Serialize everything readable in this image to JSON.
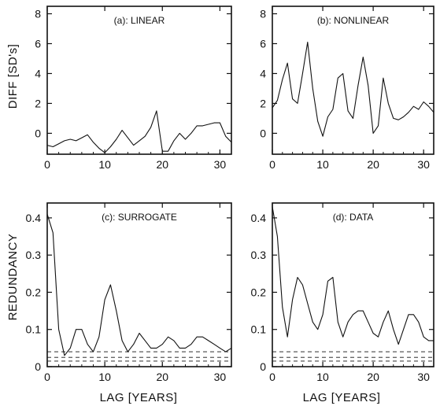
{
  "figure": {
    "y_label_top": "DIFF [SD's]",
    "y_label_bottom": "REDUNDANCY",
    "x_label": "LAG [YEARS]"
  },
  "chart_data": [
    {
      "id": "a",
      "type": "line",
      "title": "(a): LINEAR",
      "xlabel": "",
      "ylabel": "DIFF [SD's]",
      "xlim": [
        0,
        32
      ],
      "ylim": [
        -1.4,
        8.5
      ],
      "xticks": [
        "0",
        "10",
        "20",
        "30"
      ],
      "yticks": [
        "0",
        "2",
        "4",
        "6",
        "8"
      ],
      "x": [
        0,
        1,
        2,
        3,
        4,
        5,
        6,
        7,
        8,
        9,
        10,
        11,
        12,
        13,
        14,
        15,
        16,
        17,
        18,
        19,
        20,
        21,
        22,
        23,
        24,
        25,
        26,
        27,
        28,
        29,
        30,
        31,
        32
      ],
      "series": [
        {
          "values": [
            -0.8,
            -0.9,
            -0.7,
            -0.5,
            -0.4,
            -0.5,
            -0.3,
            -0.1,
            -0.6,
            -1.0,
            -1.3,
            -0.9,
            -0.4,
            0.2,
            -0.3,
            -0.8,
            -0.5,
            -0.2,
            0.4,
            1.5,
            -1.2,
            -1.2,
            -0.5,
            0.0,
            -0.4,
            0.0,
            0.5,
            0.5,
            0.6,
            0.7,
            0.7,
            -0.2,
            -0.6
          ],
          "style": "solid"
        }
      ]
    },
    {
      "id": "b",
      "type": "line",
      "title": "(b): NONLINEAR",
      "xlabel": "",
      "ylabel": "",
      "xlim": [
        0,
        32
      ],
      "ylim": [
        -1.4,
        8.5
      ],
      "xticks": [
        "0",
        "10",
        "20",
        "30"
      ],
      "yticks": [
        "0",
        "2",
        "4",
        "6",
        "8"
      ],
      "x": [
        0,
        1,
        2,
        3,
        4,
        5,
        6,
        7,
        8,
        9,
        10,
        11,
        12,
        13,
        14,
        15,
        16,
        17,
        18,
        19,
        20,
        21,
        22,
        23,
        24,
        25,
        26,
        27,
        28,
        29,
        30,
        31,
        32
      ],
      "series": [
        {
          "values": [
            1.7,
            2.2,
            3.6,
            4.7,
            2.3,
            2.0,
            4.0,
            6.1,
            3.0,
            0.8,
            -0.2,
            1.1,
            1.6,
            3.7,
            4.0,
            1.5,
            1.0,
            3.2,
            5.1,
            3.2,
            0.0,
            0.5,
            3.7,
            2.0,
            1.0,
            0.9,
            1.1,
            1.4,
            1.8,
            1.6,
            2.1,
            1.8,
            1.4
          ],
          "style": "solid"
        }
      ]
    },
    {
      "id": "c",
      "type": "line",
      "title": "(c): SURROGATE",
      "xlabel": "LAG [YEARS]",
      "ylabel": "REDUNDANCY",
      "xlim": [
        0,
        32
      ],
      "ylim": [
        0,
        0.44
      ],
      "xticks": [
        "0",
        "10",
        "20",
        "30"
      ],
      "yticks": [
        "0",
        "0.1",
        "0.2",
        "0.3",
        "0.4"
      ],
      "x": [
        0,
        1,
        2,
        3,
        4,
        5,
        6,
        7,
        8,
        9,
        10,
        11,
        12,
        13,
        14,
        15,
        16,
        17,
        18,
        19,
        20,
        21,
        22,
        23,
        24,
        25,
        26,
        27,
        28,
        29,
        30,
        31,
        32
      ],
      "series": [
        {
          "values": [
            0.41,
            0.36,
            0.1,
            0.03,
            0.05,
            0.1,
            0.1,
            0.06,
            0.04,
            0.08,
            0.18,
            0.22,
            0.15,
            0.07,
            0.04,
            0.06,
            0.09,
            0.07,
            0.05,
            0.05,
            0.06,
            0.08,
            0.07,
            0.05,
            0.05,
            0.06,
            0.08,
            0.08,
            0.07,
            0.06,
            0.05,
            0.04,
            0.05
          ],
          "style": "solid"
        },
        {
          "values": [
            0.04,
            0.04,
            0.04,
            0.04,
            0.04,
            0.04,
            0.04,
            0.04,
            0.04,
            0.04,
            0.04,
            0.04,
            0.04,
            0.04,
            0.04,
            0.04,
            0.04,
            0.04,
            0.04,
            0.04,
            0.04,
            0.04,
            0.04,
            0.04,
            0.04,
            0.04,
            0.04,
            0.04,
            0.04,
            0.04,
            0.04,
            0.04,
            0.04
          ],
          "style": "dashed"
        },
        {
          "values": [
            0.025,
            0.025,
            0.025,
            0.025,
            0.025,
            0.025,
            0.025,
            0.025,
            0.025,
            0.025,
            0.025,
            0.025,
            0.025,
            0.025,
            0.025,
            0.025,
            0.025,
            0.025,
            0.025,
            0.025,
            0.025,
            0.025,
            0.025,
            0.025,
            0.025,
            0.025,
            0.025,
            0.025,
            0.025,
            0.025,
            0.025,
            0.025,
            0.025
          ],
          "style": "dashed"
        },
        {
          "values": [
            0.015,
            0.015,
            0.015,
            0.015,
            0.015,
            0.015,
            0.015,
            0.015,
            0.015,
            0.015,
            0.015,
            0.015,
            0.015,
            0.015,
            0.015,
            0.015,
            0.015,
            0.015,
            0.015,
            0.015,
            0.015,
            0.015,
            0.015,
            0.015,
            0.015,
            0.015,
            0.015,
            0.015,
            0.015,
            0.015,
            0.015,
            0.015,
            0.015
          ],
          "style": "dashed"
        }
      ]
    },
    {
      "id": "d",
      "type": "line",
      "title": "(d): DATA",
      "xlabel": "LAG [YEARS]",
      "ylabel": "",
      "xlim": [
        0,
        32
      ],
      "ylim": [
        0,
        0.44
      ],
      "xticks": [
        "0",
        "10",
        "20",
        "30"
      ],
      "yticks": [
        "0",
        "0.1",
        "0.2",
        "0.3",
        "0.4"
      ],
      "x": [
        0,
        1,
        2,
        3,
        4,
        5,
        6,
        7,
        8,
        9,
        10,
        11,
        12,
        13,
        14,
        15,
        16,
        17,
        18,
        19,
        20,
        21,
        22,
        23,
        24,
        25,
        26,
        27,
        28,
        29,
        30,
        31,
        32
      ],
      "series": [
        {
          "values": [
            0.43,
            0.35,
            0.16,
            0.08,
            0.18,
            0.24,
            0.22,
            0.17,
            0.12,
            0.1,
            0.14,
            0.23,
            0.24,
            0.12,
            0.08,
            0.12,
            0.14,
            0.15,
            0.15,
            0.12,
            0.09,
            0.08,
            0.12,
            0.15,
            0.1,
            0.06,
            0.1,
            0.14,
            0.14,
            0.12,
            0.08,
            0.07,
            0.07
          ],
          "style": "solid"
        },
        {
          "values": [
            0.04,
            0.04,
            0.04,
            0.04,
            0.04,
            0.04,
            0.04,
            0.04,
            0.04,
            0.04,
            0.04,
            0.04,
            0.04,
            0.04,
            0.04,
            0.04,
            0.04,
            0.04,
            0.04,
            0.04,
            0.04,
            0.04,
            0.04,
            0.04,
            0.04,
            0.04,
            0.04,
            0.04,
            0.04,
            0.04,
            0.04,
            0.04,
            0.04
          ],
          "style": "dashed"
        },
        {
          "values": [
            0.025,
            0.025,
            0.025,
            0.025,
            0.025,
            0.025,
            0.025,
            0.025,
            0.025,
            0.025,
            0.025,
            0.025,
            0.025,
            0.025,
            0.025,
            0.025,
            0.025,
            0.025,
            0.025,
            0.025,
            0.025,
            0.025,
            0.025,
            0.025,
            0.025,
            0.025,
            0.025,
            0.025,
            0.025,
            0.025,
            0.025,
            0.025,
            0.025
          ],
          "style": "dashed"
        },
        {
          "values": [
            0.015,
            0.015,
            0.015,
            0.015,
            0.015,
            0.015,
            0.015,
            0.015,
            0.015,
            0.015,
            0.015,
            0.015,
            0.015,
            0.015,
            0.015,
            0.015,
            0.015,
            0.015,
            0.015,
            0.015,
            0.015,
            0.015,
            0.015,
            0.015,
            0.015,
            0.015,
            0.015,
            0.015,
            0.015,
            0.015,
            0.015,
            0.015,
            0.015
          ],
          "style": "dashed"
        }
      ]
    }
  ]
}
